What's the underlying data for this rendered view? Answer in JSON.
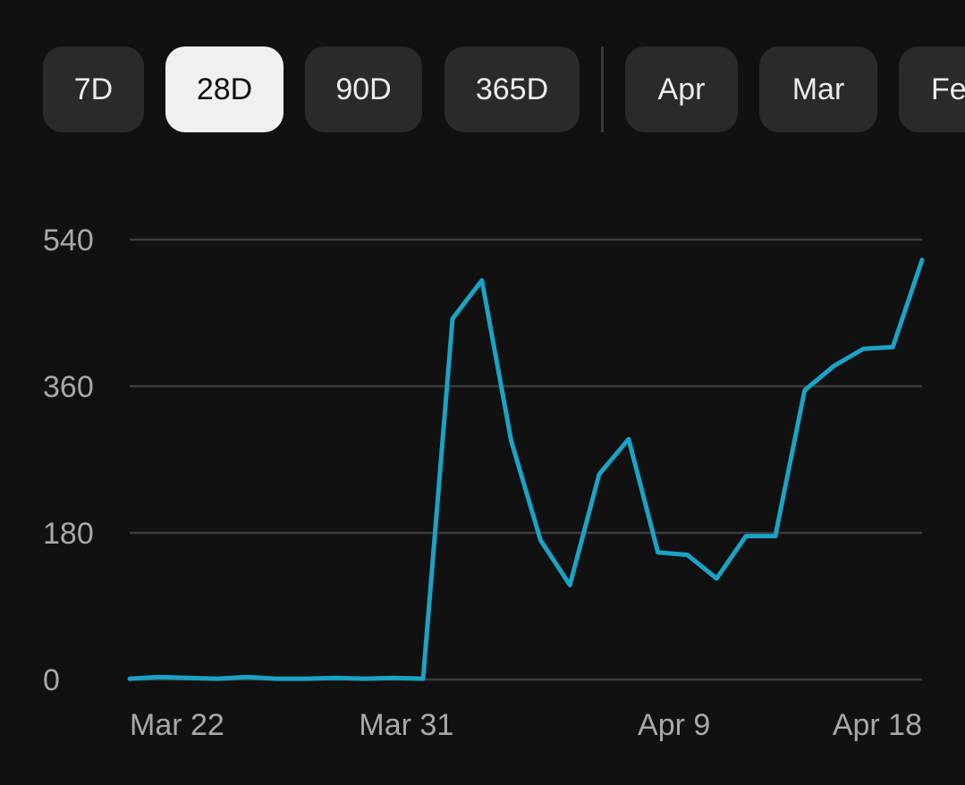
{
  "range_selector": {
    "options": [
      {
        "label": "7D",
        "selected": false
      },
      {
        "label": "28D",
        "selected": true
      },
      {
        "label": "90D",
        "selected": false
      },
      {
        "label": "365D",
        "selected": false
      }
    ],
    "months": [
      {
        "label": "Apr",
        "selected": false
      },
      {
        "label": "Mar",
        "selected": false
      },
      {
        "label": "Fe",
        "selected": false
      }
    ]
  },
  "colors": {
    "background": "#111111",
    "chip": "#2a2a2a",
    "chip_selected": "#f0f0f0",
    "line": "#1ba3c6",
    "grid": "#3c3c3c"
  },
  "chart_data": {
    "type": "line",
    "x_ticks": [
      "Mar 22",
      "Mar 31",
      "Apr 9",
      "Apr 18"
    ],
    "y_ticks": [
      "0",
      "180",
      "360",
      "540"
    ],
    "ylim": [
      0,
      540
    ],
    "grid": true,
    "series": [
      {
        "values": [
          1,
          3,
          2,
          1,
          3,
          1,
          1,
          2,
          1,
          2,
          1,
          443,
          490,
          293,
          171,
          116,
          252,
          295,
          156,
          153,
          124,
          176,
          176,
          355,
          385,
          406,
          408,
          515
        ]
      }
    ]
  }
}
